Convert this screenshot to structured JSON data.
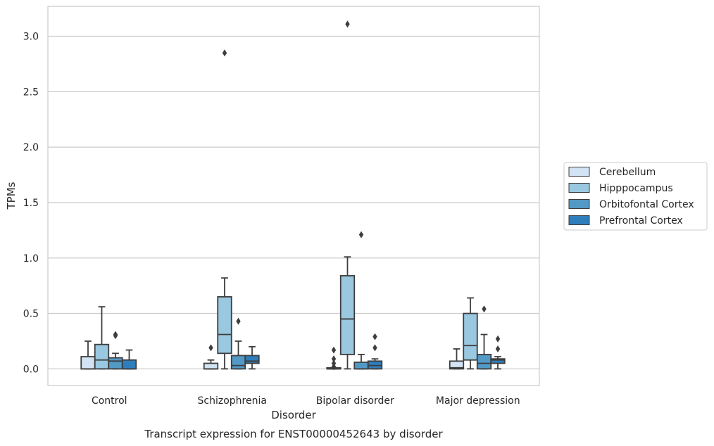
{
  "chart_data": {
    "type": "box",
    "caption": "Transcript expression for ENST00000452643 by disorder",
    "xlabel": "Disorder",
    "ylabel": "TPMs",
    "ylim": [
      -0.15,
      3.27
    ],
    "yticks": [
      "0.0",
      "0.5",
      "1.0",
      "1.5",
      "2.0",
      "2.5",
      "3.0"
    ],
    "categories": [
      "Control",
      "Schizophrenia",
      "Bipolar disorder",
      "Major depression"
    ],
    "grid": "horizontal",
    "legend_position": "right",
    "series": [
      {
        "name": "Cerebellum",
        "color": "#d2e3f3",
        "boxes": [
          {
            "q1": 0.0,
            "median": 0.0,
            "q3": 0.11,
            "whisker_low": 0.0,
            "whisker_high": 0.25,
            "outliers": []
          },
          {
            "q1": 0.0,
            "median": 0.0,
            "q3": 0.05,
            "whisker_low": 0.0,
            "whisker_high": 0.08,
            "outliers": [
              0.19
            ]
          },
          {
            "q1": 0.0,
            "median": 0.0,
            "q3": 0.01,
            "whisker_low": 0.0,
            "whisker_high": 0.01,
            "outliers": [
              0.02,
              0.05,
              0.09,
              0.17
            ]
          },
          {
            "q1": 0.0,
            "median": 0.01,
            "q3": 0.07,
            "whisker_low": 0.0,
            "whisker_high": 0.18,
            "outliers": []
          }
        ]
      },
      {
        "name": "Hipppocampus",
        "color": "#9ac8e0",
        "boxes": [
          {
            "q1": 0.0,
            "median": 0.08,
            "q3": 0.22,
            "whisker_low": 0.0,
            "whisker_high": 0.56,
            "outliers": []
          },
          {
            "q1": 0.14,
            "median": 0.31,
            "q3": 0.65,
            "whisker_low": 0.0,
            "whisker_high": 0.82,
            "outliers": [
              2.85
            ]
          },
          {
            "q1": 0.13,
            "median": 0.45,
            "q3": 0.84,
            "whisker_low": 0.0,
            "whisker_high": 1.01,
            "outliers": [
              3.11
            ]
          },
          {
            "q1": 0.08,
            "median": 0.21,
            "q3": 0.5,
            "whisker_low": 0.0,
            "whisker_high": 0.64,
            "outliers": []
          }
        ]
      },
      {
        "name": "Orbitofontal Cortex",
        "color": "#5399c6",
        "boxes": [
          {
            "q1": 0.0,
            "median": 0.07,
            "q3": 0.1,
            "whisker_low": 0.0,
            "whisker_high": 0.14,
            "outliers": [
              0.3,
              0.31
            ]
          },
          {
            "q1": 0.0,
            "median": 0.03,
            "q3": 0.12,
            "whisker_low": 0.0,
            "whisker_high": 0.25,
            "outliers": [
              0.43
            ]
          },
          {
            "q1": 0.0,
            "median": 0.0,
            "q3": 0.06,
            "whisker_low": 0.0,
            "whisker_high": 0.13,
            "outliers": [
              1.21
            ]
          },
          {
            "q1": 0.0,
            "median": 0.05,
            "q3": 0.13,
            "whisker_low": 0.0,
            "whisker_high": 0.31,
            "outliers": [
              0.54
            ]
          }
        ]
      },
      {
        "name": "Prefrontal Cortex",
        "color": "#2e7ebc",
        "boxes": [
          {
            "q1": 0.0,
            "median": 0.0,
            "q3": 0.08,
            "whisker_low": 0.0,
            "whisker_high": 0.17,
            "outliers": []
          },
          {
            "q1": 0.05,
            "median": 0.07,
            "q3": 0.12,
            "whisker_low": 0.0,
            "whisker_high": 0.2,
            "outliers": []
          },
          {
            "q1": 0.0,
            "median": 0.03,
            "q3": 0.07,
            "whisker_low": 0.0,
            "whisker_high": 0.09,
            "outliers": [
              0.19,
              0.29
            ]
          },
          {
            "q1": 0.05,
            "median": 0.08,
            "q3": 0.09,
            "whisker_low": 0.0,
            "whisker_high": 0.11,
            "outliers": [
              0.18,
              0.27
            ]
          }
        ]
      }
    ]
  }
}
